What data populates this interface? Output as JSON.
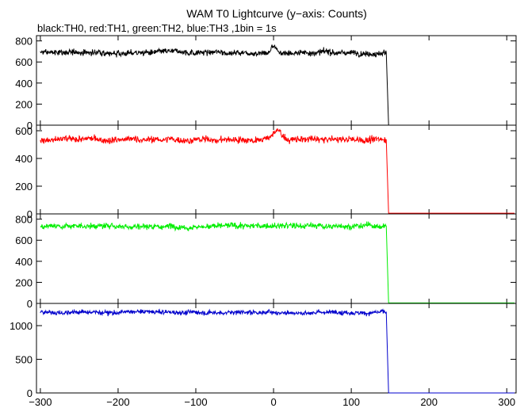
{
  "chart_data": {
    "type": "line",
    "title": "WAM T0 Lightcurve (y−axis: Counts)",
    "subtitle": "black:TH0, red:TH1, green:TH2, blue:TH3 ,1bin = 1s",
    "xlim": [
      -305,
      312
    ],
    "x_ticks": [
      -300,
      -200,
      -100,
      0,
      100,
      200,
      300
    ],
    "x_tick_labels": [
      "−300",
      "−200",
      "−100",
      "0",
      "100",
      "200",
      "300"
    ],
    "panels": [
      {
        "name": "TH0",
        "color": "#000000",
        "ylim": [
          0,
          850
        ],
        "y_ticks": [
          0,
          200,
          400,
          600,
          800
        ],
        "level": 690,
        "noise": 20,
        "drop_x": 145,
        "after_level": 0,
        "peak": {
          "x": 0,
          "value": 760,
          "width": 4
        }
      },
      {
        "name": "TH1",
        "color": "#ff0000",
        "ylim": [
          0,
          640
        ],
        "y_ticks": [
          0,
          200,
          400,
          600
        ],
        "level": 535,
        "noise": 17,
        "drop_x": 145,
        "after_level": 5,
        "peak": {
          "x": 5,
          "value": 600,
          "width": 8
        }
      },
      {
        "name": "TH2",
        "color": "#00ee00",
        "ylim": [
          0,
          850
        ],
        "y_ticks": [
          0,
          200,
          400,
          600,
          800
        ],
        "level": 735,
        "noise": 20,
        "drop_x": 145,
        "after_level": 5,
        "peak": null
      },
      {
        "name": "TH3",
        "color": "#0000cc",
        "ylim": [
          0,
          1330
        ],
        "y_ticks": [
          0,
          500,
          1000
        ],
        "level": 1200,
        "noise": 25,
        "drop_x": 145,
        "after_level": 0,
        "peak": null
      }
    ]
  }
}
